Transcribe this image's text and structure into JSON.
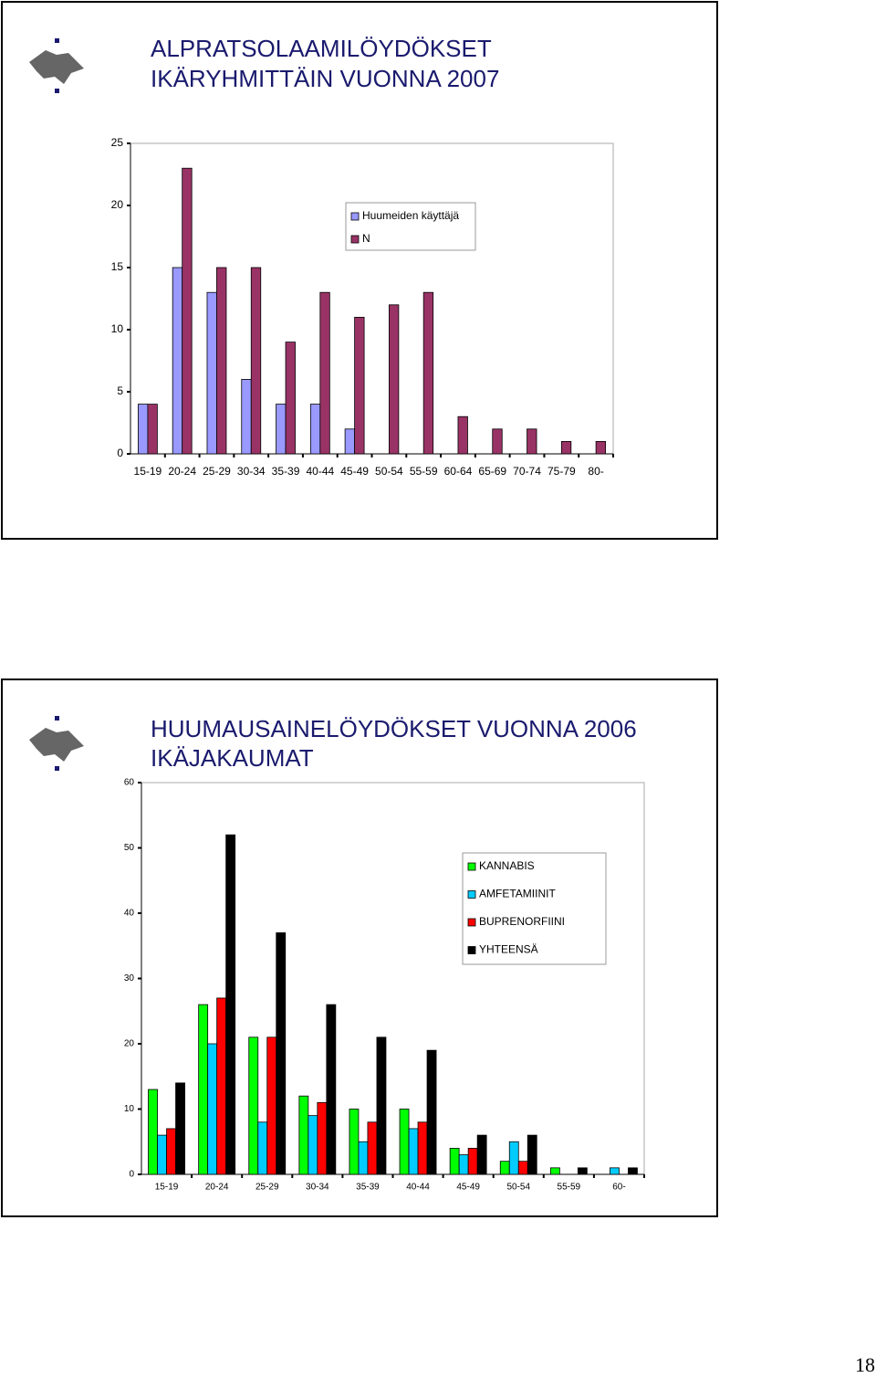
{
  "chart_data": [
    {
      "type": "bar",
      "title": [
        "ALPRATSOLAAMILÖYDÖKSET",
        "IKÄRYHMITTÄIN VUONNA 2007"
      ],
      "categories": [
        "15-19",
        "20-24",
        "25-29",
        "30-34",
        "35-39",
        "40-44",
        "45-49",
        "50-54",
        "55-59",
        "60-64",
        "65-69",
        "70-74",
        "75-79",
        "80-"
      ],
      "series": [
        {
          "name": "Huumeiden käyttäjä",
          "color": "#9999ff",
          "values": [
            4,
            15,
            13,
            6,
            4,
            4,
            2,
            0,
            0,
            0,
            0,
            0,
            0,
            0
          ]
        },
        {
          "name": "N",
          "color": "#993366",
          "values": [
            4,
            23,
            15,
            15,
            9,
            13,
            11,
            12,
            13,
            3,
            2,
            2,
            1,
            1
          ]
        }
      ],
      "ylim": [
        0,
        25
      ],
      "yticks": [
        0,
        5,
        10,
        15,
        20,
        25
      ]
    },
    {
      "type": "bar",
      "title": [
        "HUUMAUSAINELÖYDÖKSET VUONNA 2006",
        "IKÄJAKAUMAT"
      ],
      "categories": [
        "15-19",
        "20-24",
        "25-29",
        "30-34",
        "35-39",
        "40-44",
        "45-49",
        "50-54",
        "55-59",
        "60-"
      ],
      "series": [
        {
          "name": "KANNABIS",
          "color": "#00ff00",
          "values": [
            13,
            26,
            21,
            12,
            10,
            10,
            4,
            2,
            1,
            0
          ]
        },
        {
          "name": "AMFETAMIINIT",
          "color": "#00ccff",
          "values": [
            6,
            20,
            8,
            9,
            5,
            7,
            3,
            5,
            0,
            1
          ]
        },
        {
          "name": "BUPRENORFIINI",
          "color": "#ff0000",
          "values": [
            7,
            27,
            21,
            11,
            8,
            8,
            4,
            2,
            0,
            0
          ]
        },
        {
          "name": "YHTEENSÄ",
          "color": "#000000",
          "values": [
            14,
            52,
            37,
            26,
            21,
            19,
            6,
            6,
            1,
            1
          ]
        }
      ],
      "ylim": [
        0,
        60
      ],
      "yticks": [
        0,
        10,
        20,
        30,
        40,
        50,
        60
      ]
    }
  ],
  "page_number": "18"
}
